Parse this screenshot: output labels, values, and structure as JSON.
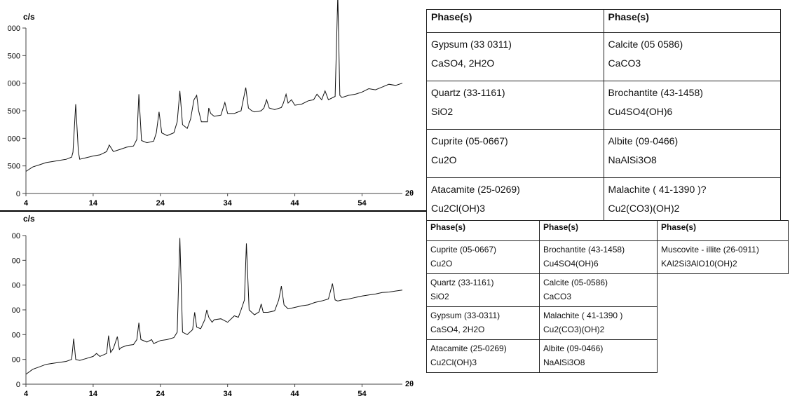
{
  "chart_data": [
    {
      "type": "line",
      "title": "",
      "ylabel": "c/s",
      "xlabel": "2θ",
      "xlim": [
        4,
        60
      ],
      "ylim": [
        0,
        3000
      ],
      "xticks": [
        "4",
        "14",
        "24",
        "34",
        "44",
        "54"
      ],
      "yticks": [
        "0",
        "500",
        "1000",
        "1500",
        "2000",
        "2500",
        "3000"
      ],
      "ytick_labels": [
        "0",
        "500",
        "000",
        "500",
        "000",
        "500",
        "000"
      ],
      "series": [
        {
          "x": [
            4,
            5,
            6,
            7,
            8,
            9,
            10,
            10.8,
            11,
            11.4,
            11.8,
            12,
            13,
            14,
            15,
            16,
            16.4,
            17,
            18,
            19,
            20,
            20.5,
            20.8,
            21.2,
            22,
            23,
            23.4,
            23.8,
            24.2,
            25,
            26,
            26.5,
            26.9,
            27.3,
            28,
            28.5,
            29,
            29.4,
            29.7,
            30.1,
            31,
            31.2,
            31.5,
            32,
            33,
            33.6,
            34,
            35,
            36,
            36.7,
            37.1,
            37.6,
            38,
            39,
            39.4,
            39.8,
            40.2,
            41,
            42,
            42.3,
            42.7,
            43,
            43.5,
            44,
            45,
            46,
            46.8,
            47.3,
            48,
            48.5,
            49,
            50,
            50.4,
            50.7,
            51,
            52,
            53,
            54,
            55,
            56,
            57,
            58,
            59,
            60
          ],
          "y": [
            400,
            480,
            520,
            560,
            580,
            600,
            620,
            660,
            750,
            1620,
            760,
            620,
            650,
            680,
            700,
            760,
            880,
            760,
            800,
            840,
            860,
            980,
            1800,
            960,
            920,
            950,
            1100,
            1480,
            1100,
            1050,
            1100,
            1300,
            1860,
            1250,
            1180,
            1350,
            1700,
            1780,
            1500,
            1300,
            1300,
            1550,
            1450,
            1400,
            1420,
            1650,
            1450,
            1450,
            1500,
            1920,
            1550,
            1500,
            1480,
            1500,
            1550,
            1700,
            1550,
            1520,
            1560,
            1640,
            1800,
            1640,
            1700,
            1600,
            1620,
            1680,
            1700,
            1800,
            1700,
            1860,
            1700,
            1760,
            3600,
            1780,
            1740,
            1780,
            1800,
            1840,
            1900,
            1880,
            1930,
            1980,
            1960,
            2000
          ]
        }
      ]
    },
    {
      "type": "line",
      "title": "",
      "ylabel": "c/s",
      "xlabel": "2θ",
      "xlim": [
        4,
        60
      ],
      "ylim": [
        0,
        3000
      ],
      "xticks": [
        "4",
        "14",
        "24",
        "34",
        "44",
        "54"
      ],
      "yticks": [
        "0",
        "500",
        "1000",
        "1500",
        "2000",
        "2500",
        "3000"
      ],
      "ytick_labels": [
        "0",
        "00",
        "00",
        "00",
        "00",
        "00",
        "00"
      ],
      "series": [
        {
          "x": [
            4,
            5,
            6,
            7,
            8,
            9,
            10,
            10.8,
            11.1,
            11.4,
            12,
            13,
            14,
            14.5,
            15,
            16,
            16.3,
            16.6,
            17,
            17.6,
            17.9,
            18.2,
            19,
            20,
            20.5,
            20.8,
            21.1,
            22,
            22.7,
            23,
            24,
            25,
            26,
            26.5,
            26.9,
            27.3,
            28,
            28.8,
            29.1,
            29.4,
            30,
            30.6,
            30.9,
            31.2,
            31.7,
            32,
            33,
            34,
            35,
            35.6,
            36,
            36.5,
            36.8,
            37.2,
            38,
            38.7,
            39,
            39.3,
            40,
            41,
            41.6,
            42,
            42.4,
            43,
            44,
            45,
            46,
            47,
            48,
            49,
            49.6,
            50,
            50.4,
            51,
            52,
            53,
            54,
            55,
            56,
            57,
            58,
            59,
            60
          ],
          "y": [
            200,
            300,
            350,
            400,
            420,
            440,
            460,
            500,
            920,
            500,
            480,
            520,
            560,
            620,
            560,
            620,
            980,
            640,
            720,
            960,
            700,
            740,
            780,
            800,
            900,
            1240,
            900,
            850,
            900,
            820,
            880,
            900,
            940,
            1050,
            2950,
            1050,
            1000,
            1100,
            1450,
            1150,
            1120,
            1300,
            1500,
            1350,
            1250,
            1300,
            1320,
            1250,
            1380,
            1350,
            1500,
            1700,
            2840,
            1500,
            1400,
            1460,
            1620,
            1450,
            1450,
            1480,
            1700,
            1980,
            1600,
            1520,
            1550,
            1580,
            1600,
            1650,
            1680,
            1720,
            2030,
            1700,
            1680,
            1700,
            1720,
            1750,
            1780,
            1800,
            1820,
            1850,
            1860,
            1880,
            1900
          ]
        }
      ]
    }
  ],
  "table_top": {
    "headers": [
      "Phase(s)",
      "Phase(s)"
    ],
    "rows": [
      [
        {
          "name": "Gypsum  (33 0311)",
          "formula": "CaSO4, 2H2O"
        },
        {
          "name": "Calcite  (05 0586)",
          "formula": "CaCO3"
        }
      ],
      [
        {
          "name": "Quartz  (33-1161)",
          "formula": "SiO2"
        },
        {
          "name": "Brochantite  (43-1458)",
          "formula": "Cu4SO4(OH)6"
        }
      ],
      [
        {
          "name": "Cuprite  (05-0667)",
          "formula": "Cu2O"
        },
        {
          "name": "Albite  (09-0466)",
          "formula": "NaAlSi3O8"
        }
      ],
      [
        {
          "name": "Atacamite  (25-0269)",
          "formula": "Cu2Cl(OH)3"
        },
        {
          "name": "Malachite   ( 41-1390 )?",
          "formula": "Cu2(CO3)(OH)2"
        }
      ]
    ]
  },
  "table_bottom": {
    "headers": [
      "Phase(s)",
      "Phase(s)",
      "Phase(s)"
    ],
    "rows": [
      [
        {
          "name": "Cuprite  (05-0667)",
          "formula": "Cu2O"
        },
        {
          "name": "Brochantite  (43-1458)",
          "formula": "Cu4SO4(OH)6"
        },
        {
          "name": "Muscovite - illite  (26-0911)",
          "formula": "KAl2Si3AlO10(OH)2"
        }
      ],
      [
        {
          "name": "Quartz  (33-1161)",
          "formula": "SiO2"
        },
        {
          "name": "Calcite  (05-0586)",
          "formula": "CaCO3"
        }
      ],
      [
        {
          "name": "Gypsum  (33-0311)",
          "formula": "CaSO4, 2H2O"
        },
        {
          "name": "Malachite   ( 41-1390 )",
          "formula": "Cu2(CO3)(OH)2"
        }
      ],
      [
        {
          "name": "Atacamite  (25-0269)",
          "formula": "Cu2Cl(OH)3"
        },
        {
          "name": "Albite  (09-0466)",
          "formula": "NaAlSi3O8"
        }
      ]
    ]
  }
}
